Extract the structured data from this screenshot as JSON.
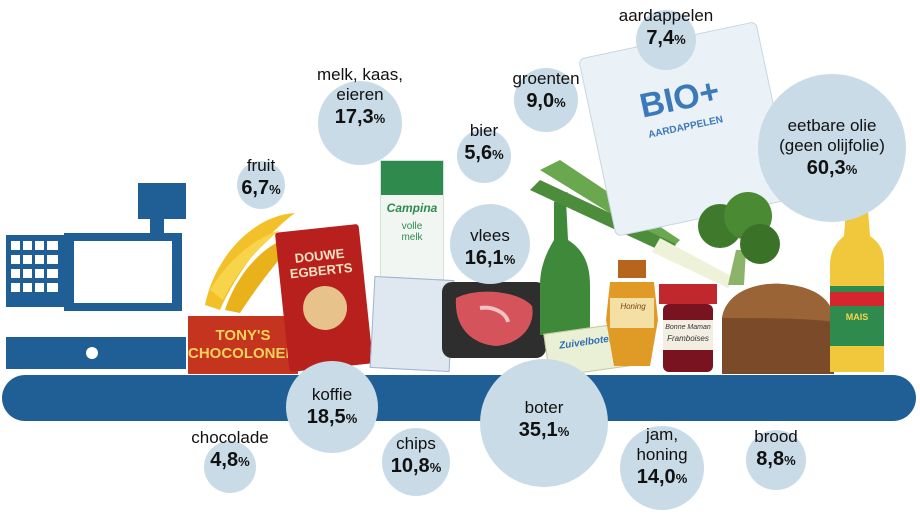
{
  "chart_data": {
    "type": "bubble",
    "unit": "%",
    "items": [
      {
        "key": "fruit",
        "name": "fruit",
        "value": "6,7"
      },
      {
        "key": "melk",
        "name": "melk, kaas,\neieren",
        "value": "17,3"
      },
      {
        "key": "bier",
        "name": "bier",
        "value": "5,6"
      },
      {
        "key": "groenten",
        "name": "groenten",
        "value": "9,0"
      },
      {
        "key": "aardappelen",
        "name": "aardappelen",
        "value": "7,4"
      },
      {
        "key": "olie",
        "name": "eetbare olie\n(geen olijfolie)",
        "value": "60,3"
      },
      {
        "key": "vlees",
        "name": "vlees",
        "value": "16,1"
      },
      {
        "key": "koffie",
        "name": "koffie",
        "value": "18,5"
      },
      {
        "key": "boter",
        "name": "boter",
        "value": "35,1"
      },
      {
        "key": "chocolade",
        "name": "chocolade",
        "value": "4,8"
      },
      {
        "key": "chips",
        "name": "chips",
        "value": "10,8"
      },
      {
        "key": "jam",
        "name": "jam,\nhoning",
        "value": "14,0"
      },
      {
        "key": "brood",
        "name": "brood",
        "value": "8,8"
      }
    ]
  },
  "product_texts": {
    "tonys": "TONY'S\nCHOCOLONELY",
    "douwe": "DOUWE\nEGBERTS",
    "campina": "Campina",
    "melk": "volle\nmelk",
    "bio": "BIO+",
    "aardappelen_bag": "AARDAPPELEN",
    "honey": "Honing",
    "jam_brand": "Bonne Maman",
    "jam_flavour": "Framboises",
    "corn": "MAIS",
    "butter": "Zuivelboter"
  },
  "colors": {
    "bubble": "#c9dbe7",
    "register": "#1f5f95",
    "belt": "#1f5f95"
  }
}
